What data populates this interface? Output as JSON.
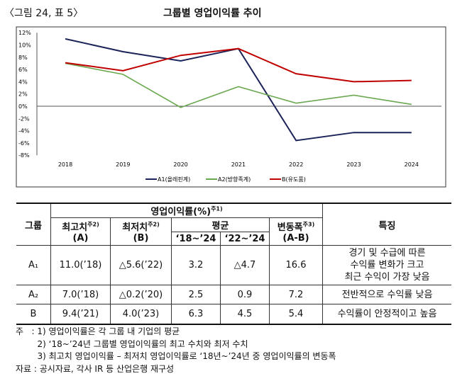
{
  "figure": {
    "label": "〈그림 24, 표 5〉",
    "title": "그룹별 영업이익률 추이"
  },
  "chart_data": {
    "type": "line",
    "title": "",
    "x": [
      "2018",
      "2019",
      "2020",
      "2021",
      "2022",
      "2023",
      "2024"
    ],
    "ylim": [
      -8,
      12
    ],
    "yticks": [
      "12%",
      "10%",
      "8%",
      "6%",
      "4%",
      "2%",
      "0%",
      "-2%",
      "-4%",
      "-6%",
      "-8%"
    ],
    "legend": "bottom",
    "series": [
      {
        "name": "A1(올레핀계)",
        "color": "#1b2358",
        "values": [
          11.0,
          8.9,
          7.4,
          9.4,
          -5.6,
          -4.3,
          -4.3
        ]
      },
      {
        "name": "A2(방향족계)",
        "color": "#6aa84f",
        "values": [
          7.0,
          5.2,
          -0.2,
          3.2,
          0.5,
          1.8,
          0.3
        ]
      },
      {
        "name": "B(유도품)",
        "color": "#c00000",
        "values": [
          7.1,
          5.8,
          8.3,
          9.4,
          5.3,
          4.0,
          4.2
        ]
      }
    ]
  },
  "table": {
    "h_group": "그룹",
    "h_margin": "영업이익률(%)",
    "h_margin_note": "주1)",
    "h_max": "최고치",
    "h_max_note": "주2)",
    "h_max_sub": "(A)",
    "h_min": "최저치",
    "h_min_note": "주2)",
    "h_min_sub": "(B)",
    "h_avg": "평균",
    "h_avg1": "‘18~’24",
    "h_avg2": "‘22~’24",
    "h_range": "변동폭",
    "h_range_note": "주3)",
    "h_range_sub": "(A-B)",
    "h_feature": "특징",
    "rows": [
      {
        "group": "A₁",
        "max": "11.0(’18)",
        "min": "△5.6(’22)",
        "avg1": "3.2",
        "avg2": "△4.7",
        "range": "16.6",
        "feature": "경기 및 수급에 따른\n수익률 변화가 크고\n최근 수익이 가장 낮음"
      },
      {
        "group": "A₂",
        "max": "7.0(’18)",
        "min": "△0.2(’20)",
        "avg1": "2.5",
        "avg2": "0.9",
        "range": "7.2",
        "feature": "전반적으로 수익률 낮음"
      },
      {
        "group": "B",
        "max": "9.4(’21)",
        "min": "4.0(’23)",
        "avg1": "6.3",
        "avg2": "4.5",
        "range": "5.4",
        "feature": "수익률이 안정적이고 높음"
      }
    ]
  },
  "notes": [
    "주   : 1) 영업이익률은 각 그룹 내 기업의 평균",
    "        2) ‘18~’24년 그룹별 영업이익률의 최고 수치와 최저 수치",
    "        3) 최고치 영업이익률 – 최저치 영업이익률로 ‘18년~’24년 중 영업이익률의 변동폭",
    "자료 : 공시자료, 각사 IR 등 산업은행 재구성"
  ]
}
